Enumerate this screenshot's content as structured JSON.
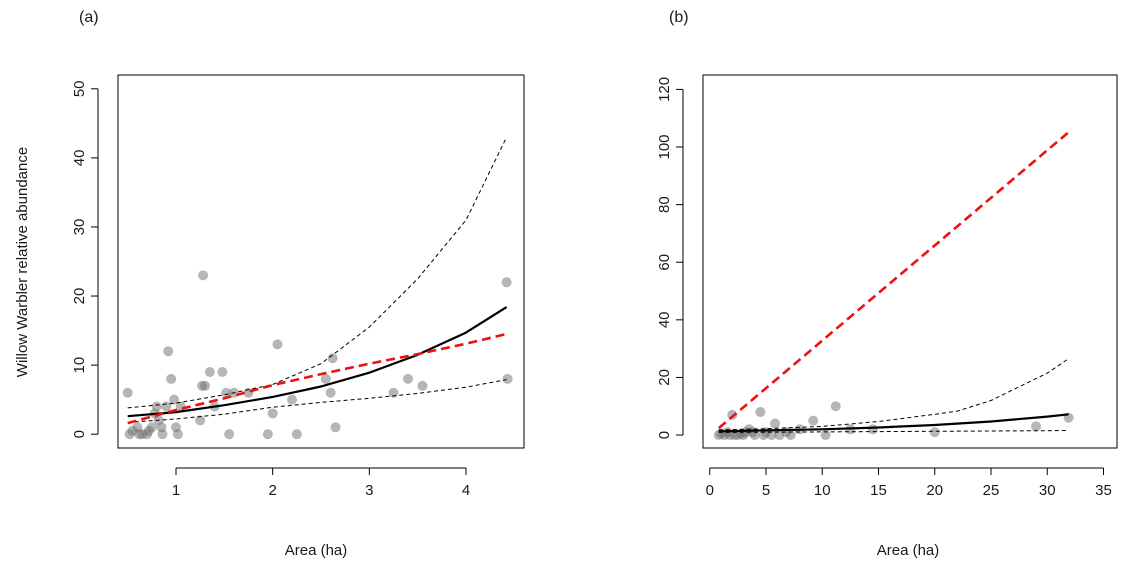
{
  "chart_data": [
    {
      "panel_label": "(a)",
      "type": "scatter",
      "xlabel": "Area (ha)",
      "ylabel": "Willow Warbler relative abundance",
      "xlim": [
        0.4,
        4.6
      ],
      "ylim": [
        -2,
        52
      ],
      "xticks": [
        1,
        2,
        3,
        4
      ],
      "yticks": [
        0,
        10,
        20,
        30,
        40,
        50
      ],
      "points": [
        [
          0.5,
          6
        ],
        [
          0.52,
          0
        ],
        [
          0.55,
          0.5
        ],
        [
          0.6,
          1
        ],
        [
          0.62,
          0
        ],
        [
          0.65,
          0
        ],
        [
          0.7,
          0
        ],
        [
          0.72,
          0.5
        ],
        [
          0.75,
          1
        ],
        [
          0.78,
          3
        ],
        [
          0.8,
          4
        ],
        [
          0.82,
          2
        ],
        [
          0.85,
          1
        ],
        [
          0.86,
          0
        ],
        [
          0.9,
          4
        ],
        [
          0.92,
          12
        ],
        [
          0.95,
          8
        ],
        [
          0.98,
          5
        ],
        [
          1.0,
          1
        ],
        [
          1.02,
          0
        ],
        [
          1.05,
          4
        ],
        [
          1.25,
          2
        ],
        [
          1.27,
          7
        ],
        [
          1.28,
          23
        ],
        [
          1.3,
          7
        ],
        [
          1.35,
          9
        ],
        [
          1.4,
          4
        ],
        [
          1.48,
          9
        ],
        [
          1.52,
          6
        ],
        [
          1.55,
          0
        ],
        [
          1.6,
          6
        ],
        [
          1.75,
          6
        ],
        [
          1.95,
          0
        ],
        [
          2.0,
          3
        ],
        [
          2.05,
          13
        ],
        [
          2.2,
          5
        ],
        [
          2.25,
          0
        ],
        [
          2.55,
          8
        ],
        [
          2.6,
          6
        ],
        [
          2.62,
          11
        ],
        [
          2.65,
          1
        ],
        [
          3.25,
          6
        ],
        [
          3.4,
          8
        ],
        [
          3.55,
          7
        ],
        [
          4.42,
          22
        ],
        [
          4.43,
          8
        ]
      ],
      "series": [
        {
          "style": "solid-black",
          "x": [
            0.5,
            1.0,
            1.5,
            2.0,
            2.5,
            3.0,
            3.5,
            4.0,
            4.42
          ],
          "y": [
            2.6,
            3.2,
            4.2,
            5.4,
            6.9,
            8.9,
            11.5,
            14.7,
            18.4
          ]
        },
        {
          "style": "dashed-black-upper",
          "x": [
            0.5,
            1.0,
            1.5,
            2.0,
            2.5,
            3.0,
            3.5,
            4.0,
            4.42
          ],
          "y": [
            3.8,
            4.5,
            5.7,
            7.2,
            10.2,
            15.5,
            22.5,
            31.0,
            43.0
          ]
        },
        {
          "style": "dashed-black-lower",
          "x": [
            0.5,
            1.0,
            1.5,
            2.0,
            2.5,
            3.0,
            3.5,
            4.0,
            4.42
          ],
          "y": [
            1.7,
            2.2,
            2.9,
            3.9,
            4.6,
            5.2,
            5.9,
            6.8,
            7.9
          ]
        },
        {
          "style": "dashed-red",
          "x": [
            0.5,
            1.0,
            1.5,
            2.0,
            2.5,
            3.0,
            3.5,
            4.0,
            4.42
          ],
          "y": [
            1.6,
            3.5,
            5.2,
            7.1,
            8.7,
            10.2,
            11.6,
            13.1,
            14.5
          ]
        }
      ]
    },
    {
      "panel_label": "(b)",
      "type": "scatter",
      "xlabel": "Area (ha)",
      "ylabel": "",
      "xlim": [
        -0.6,
        36.2
      ],
      "ylim": [
        -4.5,
        125
      ],
      "xticks": [
        0,
        5,
        10,
        15,
        20,
        25,
        30,
        35
      ],
      "yticks": [
        0,
        20,
        40,
        60,
        80,
        100,
        120
      ],
      "points": [
        [
          0.8,
          0
        ],
        [
          1.0,
          0.5
        ],
        [
          1.3,
          0
        ],
        [
          1.6,
          1
        ],
        [
          1.8,
          0
        ],
        [
          2.0,
          7
        ],
        [
          2.2,
          0
        ],
        [
          2.5,
          0
        ],
        [
          2.8,
          0.5
        ],
        [
          3.0,
          0
        ],
        [
          3.2,
          1
        ],
        [
          3.5,
          2
        ],
        [
          3.8,
          1
        ],
        [
          4.0,
          0
        ],
        [
          4.5,
          8
        ],
        [
          4.8,
          0
        ],
        [
          5.0,
          1
        ],
        [
          5.5,
          0
        ],
        [
          5.8,
          4
        ],
        [
          6.2,
          0
        ],
        [
          6.8,
          1
        ],
        [
          7.2,
          0
        ],
        [
          8.0,
          2
        ],
        [
          9.2,
          5
        ],
        [
          10.3,
          0
        ],
        [
          11.2,
          10
        ],
        [
          12.5,
          2
        ],
        [
          14.5,
          2
        ],
        [
          20.0,
          1
        ],
        [
          29.0,
          3
        ],
        [
          31.9,
          6
        ]
      ],
      "series": [
        {
          "style": "solid-black",
          "x": [
            0.8,
            5,
            10,
            15,
            20,
            25,
            30,
            31.9
          ],
          "y": [
            1.3,
            1.6,
            2.0,
            2.6,
            3.5,
            4.7,
            6.4,
            7.2
          ]
        },
        {
          "style": "dashed-black-upper",
          "x": [
            0.8,
            5,
            10,
            15,
            20,
            22,
            25,
            30,
            31.9
          ],
          "y": [
            1.8,
            2.2,
            3.0,
            4.7,
            7.2,
            8.3,
            12.0,
            21.5,
            26.5
          ]
        },
        {
          "style": "dashed-black-lower",
          "x": [
            0.8,
            5,
            10,
            15,
            20,
            25,
            30,
            31.9
          ],
          "y": [
            0.9,
            1.0,
            1.1,
            1.2,
            1.3,
            1.4,
            1.5,
            1.6
          ]
        },
        {
          "style": "dashed-red",
          "x": [
            0.8,
            32
          ],
          "y": [
            2.4,
            105.5
          ]
        }
      ]
    }
  ]
}
